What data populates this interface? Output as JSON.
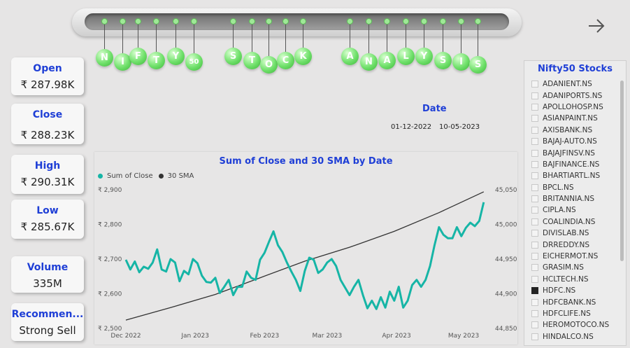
{
  "banner": {
    "letters": [
      "N",
      "I",
      "F",
      "T",
      "Y",
      "50",
      "S",
      "T",
      "O",
      "C",
      "K",
      "A",
      "N",
      "A",
      "L",
      "Y",
      "S",
      "I",
      "S"
    ]
  },
  "nav": {
    "icon": "arrow-right-icon"
  },
  "kpis": [
    {
      "label": "Open",
      "value": "₹ 287.98K"
    },
    {
      "label": "Close",
      "value": "₹ 288.23K"
    },
    {
      "label": "High",
      "value": "₹ 290.31K"
    },
    {
      "label": "Low",
      "value": "₹ 285.67K"
    },
    {
      "label": "Volume",
      "value": "335M"
    },
    {
      "label": "Recommen...",
      "value": "Strong Sell"
    }
  ],
  "date_slicer": {
    "title": "Date",
    "start": "01-12-2022",
    "end": "10-05-2023"
  },
  "stocks_slicer": {
    "title": "Nifty50 Stocks",
    "items": [
      "ADANIENT.NS",
      "ADANIPORTS.NS",
      "APOLLOHOSP.NS",
      "ASIANPAINT.NS",
      "AXISBANK.NS",
      "BAJAJ-AUTO.NS",
      "BAJAJFINSV.NS",
      "BAJFINANCE.NS",
      "BHARTIARTL.NS",
      "BPCL.NS",
      "BRITANNIA.NS",
      "CIPLA.NS",
      "COALINDIA.NS",
      "DIVISLAB.NS",
      "DRREDDY.NS",
      "EICHERMOT.NS",
      "GRASIM.NS",
      "HCLTECH.NS",
      "HDFC.NS",
      "HDFCBANK.NS",
      "HDFCLIFE.NS",
      "HEROMOTOCO.NS",
      "HINDALCO.NS"
    ],
    "selected": "HDFC.NS"
  },
  "chart_data": {
    "type": "line",
    "title": "Sum of Close and 30 SMA by Date",
    "legend_position": "top-left",
    "x_ticks": [
      "Dec 2022",
      "Jan 2023",
      "Feb 2023",
      "Mar 2023",
      "Apr 2023",
      "May 2023"
    ],
    "y_left_ticks": [
      "₹ 2,500",
      "₹ 2,600",
      "₹ 2,700",
      "₹ 2,800",
      "₹ 2,900"
    ],
    "y_right_ticks": [
      "44,850",
      "44,900",
      "44,950",
      "45,000",
      "45,050"
    ],
    "ylim_left": [
      2500,
      2900
    ],
    "ylim_right": [
      44850,
      45050
    ],
    "x_range_days": [
      0,
      161
    ],
    "colors": {
      "close": "#16b5a6",
      "sma": "#333333"
    },
    "series": [
      {
        "name": "Sum of Close",
        "axis": "left",
        "x": [
          0,
          2,
          4,
          6,
          8,
          10,
          12,
          14,
          16,
          18,
          20,
          22,
          24,
          26,
          28,
          30,
          32,
          34,
          36,
          38,
          40,
          42,
          44,
          46,
          48,
          50,
          52,
          54,
          56,
          58,
          60,
          62,
          64,
          66,
          68,
          70,
          72,
          74,
          76,
          78,
          80,
          82,
          84,
          86,
          88,
          90,
          92,
          94,
          96,
          98,
          100,
          102,
          104,
          106,
          108,
          110,
          112,
          114,
          116,
          118,
          120,
          122,
          124,
          126,
          128,
          130,
          132,
          134,
          136,
          138,
          140,
          142,
          144,
          146,
          148,
          150,
          152,
          154,
          156,
          158,
          160
        ],
        "y": [
          2698,
          2670,
          2693,
          2662,
          2678,
          2672,
          2690,
          2728,
          2670,
          2664,
          2700,
          2690,
          2636,
          2666,
          2656,
          2700,
          2688,
          2652,
          2634,
          2632,
          2646,
          2602,
          2620,
          2640,
          2596,
          2620,
          2620,
          2664,
          2646,
          2640,
          2698,
          2718,
          2750,
          2780,
          2740,
          2720,
          2690,
          2664,
          2640,
          2608,
          2666,
          2704,
          2698,
          2660,
          2670,
          2690,
          2700,
          2680,
          2640,
          2618,
          2596,
          2620,
          2640,
          2596,
          2558,
          2580,
          2556,
          2590,
          2560,
          2606,
          2580,
          2620,
          2560,
          2580,
          2625,
          2640,
          2620,
          2640,
          2680,
          2740,
          2792,
          2770,
          2760,
          2760,
          2792,
          2766,
          2790,
          2805,
          2795,
          2810,
          2864
        ]
      },
      {
        "name": "30 SMA",
        "axis": "right",
        "x": [
          0,
          20,
          40,
          60,
          80,
          100,
          120,
          140,
          160
        ],
        "y": [
          44862,
          44880,
          44899,
          44923,
          44947,
          44967,
          44990,
          45017,
          45047
        ]
      }
    ]
  }
}
